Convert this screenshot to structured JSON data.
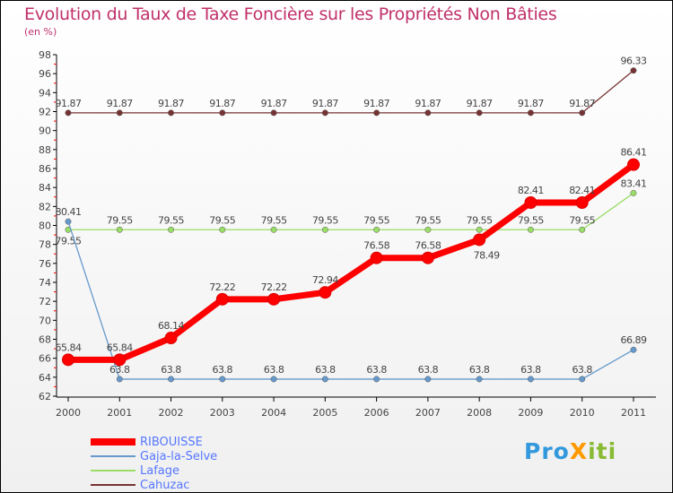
{
  "title": "Evolution du Taux de Taxe Foncière sur les Propriétés Non Bâties",
  "unit": "(en %)",
  "logo": "ProXiti",
  "chart_data": {
    "type": "line",
    "title": "Evolution du Taux de Taxe Foncière sur les Propriétés Non Bâties",
    "ylabel": "(en %)",
    "ylim": [
      62,
      98
    ],
    "yticks": [
      62,
      64,
      66,
      68,
      70,
      72,
      74,
      76,
      78,
      80,
      82,
      84,
      86,
      88,
      90,
      92,
      94,
      96,
      98
    ],
    "x": [
      "2000",
      "2001",
      "2002",
      "2003",
      "2004",
      "2005",
      "2006",
      "2007",
      "2008",
      "2009",
      "2010",
      "2011"
    ],
    "legend_position": "bottom-left",
    "series": [
      {
        "name": "RIBOUISSE",
        "color": "#ff0000",
        "values": [
          65.84,
          65.84,
          68.14,
          72.22,
          72.22,
          72.94,
          76.58,
          76.58,
          78.49,
          82.41,
          82.41,
          86.41
        ]
      },
      {
        "name": "Gaja-la-Selve",
        "color": "#6699cc",
        "values": [
          80.41,
          63.8,
          63.8,
          63.8,
          63.8,
          63.8,
          63.8,
          63.8,
          63.8,
          63.8,
          63.8,
          66.89
        ]
      },
      {
        "name": "Lafage",
        "color": "#99dd66",
        "values": [
          79.55,
          79.55,
          79.55,
          79.55,
          79.55,
          79.55,
          79.55,
          79.55,
          79.55,
          79.55,
          79.55,
          83.41
        ]
      },
      {
        "name": "Cahuzac",
        "color": "#773333",
        "values": [
          91.87,
          91.87,
          91.87,
          91.87,
          91.87,
          91.87,
          91.87,
          91.87,
          91.87,
          91.87,
          91.87,
          96.33
        ]
      }
    ]
  }
}
